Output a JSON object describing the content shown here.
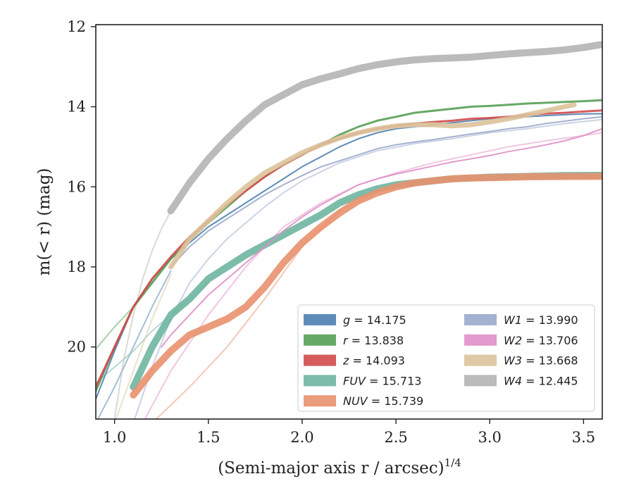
{
  "chart_data": {
    "type": "line",
    "xlabel": "(Semi-major axis r / arcsec)",
    "xlabel_sup": "1/4",
    "ylabel": "m(< r) (mag)",
    "xlim": [
      0.9,
      3.6
    ],
    "ylim": [
      21.8,
      11.95
    ],
    "y_inverted": true,
    "xticks": [
      "1.0",
      "1.5",
      "2.0",
      "2.5",
      "3.0",
      "3.5"
    ],
    "yticks": [
      "12",
      "14",
      "16",
      "18",
      "20"
    ],
    "grid": false,
    "legend_position": "lower-right",
    "legend_columns": 2,
    "series": [
      {
        "name": "g = 14.175",
        "band": "g",
        "mag": "14.175",
        "color": "#4c7fb0",
        "x": [
          0.9,
          1.0,
          1.1,
          1.2,
          1.3,
          1.4,
          1.5,
          1.6,
          1.7,
          1.8,
          1.9,
          2.0,
          2.1,
          2.2,
          2.3,
          2.4,
          2.5,
          2.6,
          2.7,
          2.8,
          2.9,
          3.0,
          3.1,
          3.2,
          3.3,
          3.4,
          3.5,
          3.6
        ],
        "y": [
          21.3,
          20.1,
          19.0,
          18.3,
          17.8,
          17.4,
          17.0,
          16.7,
          16.4,
          16.1,
          15.8,
          15.5,
          15.25,
          15.0,
          14.8,
          14.65,
          14.55,
          14.5,
          14.45,
          14.4,
          14.35,
          14.3,
          14.28,
          14.25,
          14.22,
          14.2,
          14.18,
          14.175
        ],
        "width": 2
      },
      {
        "name": "r = 13.838",
        "band": "r",
        "mag": "13.838",
        "color": "#55a055",
        "x": [
          0.9,
          1.0,
          1.1,
          1.2,
          1.3,
          1.4,
          1.5,
          1.6,
          1.7,
          1.8,
          1.9,
          2.0,
          2.1,
          2.2,
          2.3,
          2.4,
          2.5,
          2.6,
          2.7,
          2.8,
          2.9,
          3.0,
          3.1,
          3.2,
          3.3,
          3.4,
          3.5,
          3.6
        ],
        "y": [
          21.1,
          20.0,
          19.0,
          18.4,
          17.8,
          17.3,
          16.9,
          16.5,
          16.1,
          15.75,
          15.45,
          15.2,
          14.95,
          14.7,
          14.5,
          14.35,
          14.25,
          14.15,
          14.1,
          14.05,
          14.0,
          13.98,
          13.95,
          13.92,
          13.9,
          13.88,
          13.86,
          13.838
        ],
        "width": 3
      },
      {
        "name": "z = 14.093",
        "band": "z",
        "mag": "14.093",
        "color": "#d14a4a",
        "x": [
          0.9,
          1.0,
          1.1,
          1.2,
          1.3,
          1.4,
          1.5,
          1.6,
          1.7,
          1.8,
          1.9,
          2.0,
          2.1,
          2.2,
          2.3,
          2.4,
          2.5,
          2.6,
          2.7,
          2.8,
          2.9,
          3.0,
          3.1,
          3.2,
          3.3,
          3.4,
          3.5,
          3.6
        ],
        "y": [
          21.0,
          20.0,
          19.0,
          18.3,
          17.75,
          17.25,
          16.85,
          16.45,
          16.1,
          15.75,
          15.45,
          15.2,
          14.95,
          14.8,
          14.65,
          14.55,
          14.48,
          14.42,
          14.38,
          14.35,
          14.3,
          14.28,
          14.25,
          14.2,
          14.17,
          14.15,
          14.12,
          14.093
        ],
        "width": 3
      },
      {
        "name": "FUV = 15.713",
        "band": "FUV",
        "mag": "15.713",
        "color": "#6fb5a0",
        "x": [
          1.1,
          1.2,
          1.3,
          1.4,
          1.5,
          1.6,
          1.7,
          1.8,
          1.9,
          2.0,
          2.1,
          2.2,
          2.3,
          2.4,
          2.5,
          2.6,
          2.7,
          2.8,
          2.9,
          3.0,
          3.1,
          3.2,
          3.3,
          3.4,
          3.5,
          3.6
        ],
        "y": [
          21.0,
          20.0,
          19.2,
          18.8,
          18.3,
          18.0,
          17.7,
          17.45,
          17.2,
          16.95,
          16.7,
          16.4,
          16.2,
          16.05,
          15.95,
          15.9,
          15.85,
          15.8,
          15.78,
          15.76,
          15.75,
          15.74,
          15.73,
          15.72,
          15.715,
          15.713
        ],
        "width": 10
      },
      {
        "name": "NUV = 15.739",
        "band": "NUV",
        "mag": "15.739",
        "color": "#e8916e",
        "x": [
          1.1,
          1.2,
          1.3,
          1.4,
          1.5,
          1.6,
          1.7,
          1.8,
          1.9,
          2.0,
          2.1,
          2.2,
          2.3,
          2.4,
          2.5,
          2.6,
          2.7,
          2.8,
          2.9,
          3.0,
          3.1,
          3.2,
          3.3,
          3.4,
          3.5,
          3.6
        ],
        "y": [
          21.2,
          20.6,
          20.1,
          19.7,
          19.5,
          19.3,
          19.0,
          18.5,
          17.9,
          17.4,
          17.0,
          16.65,
          16.35,
          16.15,
          16.0,
          15.9,
          15.85,
          15.8,
          15.78,
          15.77,
          15.76,
          15.75,
          15.745,
          15.742,
          15.74,
          15.739
        ],
        "width": 10
      },
      {
        "name": "W1 = 13.990",
        "band": "W1",
        "mag": "13.990",
        "color": "#9aa8cb",
        "x": [
          1.3,
          1.4,
          1.5,
          1.6,
          1.7,
          1.8,
          1.9,
          2.0,
          2.1,
          2.2,
          2.3,
          2.4,
          2.5,
          2.6,
          2.7,
          2.8,
          2.9,
          3.0,
          3.1,
          3.2,
          3.3,
          3.4,
          3.5,
          3.6
        ],
        "y": [
          18.0,
          17.5,
          17.1,
          16.8,
          16.5,
          16.2,
          15.95,
          15.72,
          15.5,
          15.35,
          15.2,
          15.05,
          14.95,
          14.88,
          14.82,
          14.75,
          14.68,
          14.62,
          14.55,
          14.5,
          14.42,
          14.36,
          14.3,
          14.25
        ],
        "width": 2
      },
      {
        "name": "W2 = 13.706",
        "band": "W2",
        "mag": "13.706",
        "color": "#df90c6",
        "x": [
          1.25,
          1.3,
          1.4,
          1.5,
          1.6,
          1.7,
          1.8,
          1.9,
          2.0,
          2.1,
          2.2,
          2.3,
          2.4,
          2.5,
          2.6,
          2.7,
          2.8,
          2.9,
          3.0,
          3.1,
          3.2,
          3.3,
          3.4,
          3.5,
          3.6
        ],
        "y": [
          20.0,
          19.7,
          19.2,
          18.7,
          18.3,
          17.9,
          17.5,
          17.1,
          16.75,
          16.45,
          16.2,
          15.95,
          15.8,
          15.68,
          15.58,
          15.48,
          15.38,
          15.3,
          15.22,
          15.12,
          15.04,
          14.95,
          14.85,
          14.72,
          14.55
        ],
        "width": 2
      },
      {
        "name": "W3 = 13.668",
        "band": "W3",
        "mag": "13.668",
        "color": "#dcc29b",
        "x": [
          1.3,
          1.4,
          1.5,
          1.6,
          1.7,
          1.8,
          1.9,
          2.0,
          2.1,
          2.2,
          2.3,
          2.4,
          2.5,
          2.6,
          2.7,
          2.8,
          2.9,
          3.0,
          3.1,
          3.2,
          3.3,
          3.4,
          3.45
        ],
        "y": [
          18.0,
          17.3,
          16.85,
          16.4,
          16.0,
          15.65,
          15.4,
          15.15,
          14.95,
          14.78,
          14.65,
          14.55,
          14.48,
          14.45,
          14.45,
          14.48,
          14.45,
          14.38,
          14.3,
          14.2,
          14.1,
          14.0,
          13.95
        ],
        "width": 7
      },
      {
        "name": "W4 = 12.445",
        "band": "W4",
        "mag": "12.445",
        "color": "#b4b4b4",
        "x": [
          1.3,
          1.4,
          1.5,
          1.6,
          1.7,
          1.8,
          1.9,
          2.0,
          2.1,
          2.2,
          2.3,
          2.4,
          2.5,
          2.6,
          2.7,
          2.8,
          2.9,
          3.0,
          3.1,
          3.2,
          3.3,
          3.4,
          3.5,
          3.6
        ],
        "y": [
          16.6,
          15.9,
          15.3,
          14.8,
          14.35,
          13.95,
          13.7,
          13.45,
          13.3,
          13.18,
          13.05,
          12.95,
          12.88,
          12.83,
          12.8,
          12.78,
          12.76,
          12.72,
          12.68,
          12.65,
          12.62,
          12.58,
          12.52,
          12.445
        ],
        "width": 10
      }
    ],
    "faint_extensions": [
      {
        "band": "g",
        "color": "#4c7fb0",
        "x": [
          0.9,
          1.0,
          1.1,
          1.2,
          1.3
        ],
        "y": [
          21.9,
          21.0,
          20.0,
          19.0,
          18.1
        ]
      },
      {
        "band": "r",
        "color": "#55a055",
        "x": [
          0.9,
          1.0,
          1.1
        ],
        "y": [
          20.05,
          19.5,
          19.0
        ]
      },
      {
        "band": "FUV",
        "color": "#6fb5a0",
        "x": [
          0.9,
          1.0,
          1.1,
          1.2,
          1.3,
          1.4,
          1.5
        ],
        "y": [
          20.9,
          20.5,
          20.1,
          19.6,
          19.2,
          18.8,
          18.4
        ]
      },
      {
        "band": "NUV",
        "color": "#e8916e",
        "x": [
          1.2,
          1.4,
          1.6,
          1.8,
          2.0,
          2.2,
          2.4,
          2.6,
          2.8,
          3.0
        ],
        "y": [
          21.9,
          21.0,
          20.0,
          18.8,
          17.5,
          16.6,
          16.1,
          15.9,
          15.8,
          15.75
        ]
      },
      {
        "band": "W1",
        "color": "#9aa8cb",
        "x": [
          1.1,
          1.2,
          1.3,
          1.4,
          1.5,
          1.6,
          1.7,
          1.8,
          1.9,
          2.0,
          2.2,
          2.4,
          2.6,
          2.8,
          3.0,
          3.2,
          3.4,
          3.6
        ],
        "y": [
          21.9,
          20.5,
          19.3,
          18.4,
          17.8,
          17.3,
          16.9,
          16.5,
          16.15,
          15.85,
          15.4,
          15.1,
          14.92,
          14.8,
          14.65,
          14.55,
          14.42,
          14.32
        ]
      },
      {
        "band": "W2",
        "color": "#df90c6",
        "x": [
          1.15,
          1.3,
          1.5,
          1.7,
          1.9,
          2.1,
          2.3,
          2.5,
          2.7,
          2.9,
          3.1,
          3.3,
          3.5,
          3.6
        ],
        "y": [
          21.9,
          20.6,
          19.2,
          18.0,
          17.0,
          16.4,
          15.95,
          15.65,
          15.4,
          15.2,
          15.0,
          14.85,
          14.72,
          14.65
        ]
      },
      {
        "band": "W3",
        "color": "#dcc29b",
        "x": [
          1.0,
          1.1,
          1.2,
          1.3
        ],
        "y": [
          21.9,
          20.6,
          19.3,
          18.2
        ]
      },
      {
        "band": "W4",
        "color": "#b4b4b4",
        "x": [
          1.0,
          1.05,
          1.1,
          1.15,
          1.2,
          1.25,
          1.3
        ],
        "y": [
          21.8,
          20.3,
          19.2,
          18.3,
          17.6,
          17.05,
          16.6
        ]
      }
    ]
  }
}
